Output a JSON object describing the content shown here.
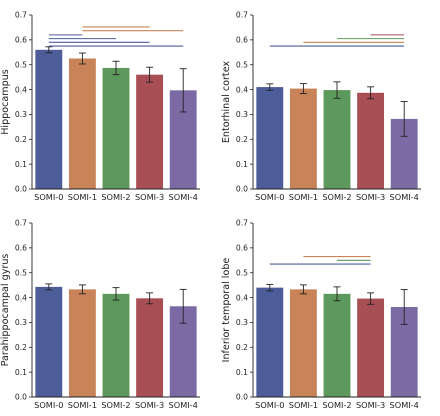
{
  "colors": {
    "SOMI-0": "#4c5d99",
    "SOMI-1": "#c98358",
    "SOMI-2": "#5d995c",
    "SOMI-3": "#a84e55",
    "SOMI-4": "#7c6aa5"
  },
  "chart_data": [
    {
      "type": "bar",
      "ylabel": "Hippocampus",
      "categories": [
        "SOMI-0",
        "SOMI-1",
        "SOMI-2",
        "SOMI-3",
        "SOMI-4"
      ],
      "values": [
        0.56,
        0.525,
        0.487,
        0.46,
        0.397
      ],
      "errors": [
        0.012,
        0.022,
        0.027,
        0.03,
        0.087
      ],
      "ylim": [
        0,
        0.7
      ],
      "yticks": [
        "0.0",
        "0.1",
        "0.2",
        "0.3",
        "0.4",
        "0.5",
        "0.6",
        "0.7"
      ],
      "significance": [
        {
          "from": 0,
          "to": 1,
          "color": "#4c5d99",
          "level": 0.62
        },
        {
          "from": 0,
          "to": 2,
          "color": "#4c5d99",
          "level": 0.605
        },
        {
          "from": 0,
          "to": 3,
          "color": "#4c5d99",
          "level": 0.59
        },
        {
          "from": 0,
          "to": 4,
          "color": "#4c5d99",
          "level": 0.575
        },
        {
          "from": 1,
          "to": 3,
          "color": "#c98358",
          "level": 0.652
        },
        {
          "from": 1,
          "to": 4,
          "color": "#c98358",
          "level": 0.637
        }
      ]
    },
    {
      "type": "bar",
      "ylabel": "Entorhinal cortex",
      "categories": [
        "SOMI-0",
        "SOMI-1",
        "SOMI-2",
        "SOMI-3",
        "SOMI-4"
      ],
      "values": [
        0.41,
        0.404,
        0.398,
        0.387,
        0.282
      ],
      "errors": [
        0.013,
        0.02,
        0.033,
        0.024,
        0.07
      ],
      "ylim": [
        0,
        0.7
      ],
      "yticks": [
        "0.0",
        "0.1",
        "0.2",
        "0.3",
        "0.4",
        "0.5",
        "0.6",
        "0.7"
      ],
      "significance": [
        {
          "from": 0,
          "to": 4,
          "color": "#4c5d99",
          "level": 0.575
        },
        {
          "from": 1,
          "to": 4,
          "color": "#c98358",
          "level": 0.59
        },
        {
          "from": 2,
          "to": 4,
          "color": "#5d995c",
          "level": 0.605
        },
        {
          "from": 3,
          "to": 4,
          "color": "#a84e55",
          "level": 0.62
        }
      ]
    },
    {
      "type": "bar",
      "ylabel": "Parahippocampal gyrus",
      "categories": [
        "SOMI-0",
        "SOMI-1",
        "SOMI-2",
        "SOMI-3",
        "SOMI-4"
      ],
      "values": [
        0.443,
        0.433,
        0.415,
        0.397,
        0.365
      ],
      "errors": [
        0.012,
        0.018,
        0.025,
        0.022,
        0.068
      ],
      "ylim": [
        0,
        0.7
      ],
      "yticks": [
        "0.0",
        "0.1",
        "0.2",
        "0.3",
        "0.4",
        "0.5",
        "0.6",
        "0.7"
      ],
      "significance": []
    },
    {
      "type": "bar",
      "ylabel": "Inferior temporal lobe",
      "categories": [
        "SOMI-0",
        "SOMI-1",
        "SOMI-2",
        "SOMI-3",
        "SOMI-4"
      ],
      "values": [
        0.44,
        0.433,
        0.415,
        0.396,
        0.362
      ],
      "errors": [
        0.013,
        0.018,
        0.028,
        0.023,
        0.07
      ],
      "ylim": [
        0,
        0.7
      ],
      "yticks": [
        "0.0",
        "0.1",
        "0.2",
        "0.3",
        "0.4",
        "0.5",
        "0.6",
        "0.7"
      ],
      "significance": [
        {
          "from": 0,
          "to": 3,
          "color": "#4c5d99",
          "level": 0.535
        },
        {
          "from": 1,
          "to": 3,
          "color": "#c98358",
          "level": 0.565
        },
        {
          "from": 2,
          "to": 3,
          "color": "#5d995c",
          "level": 0.55
        }
      ]
    }
  ]
}
